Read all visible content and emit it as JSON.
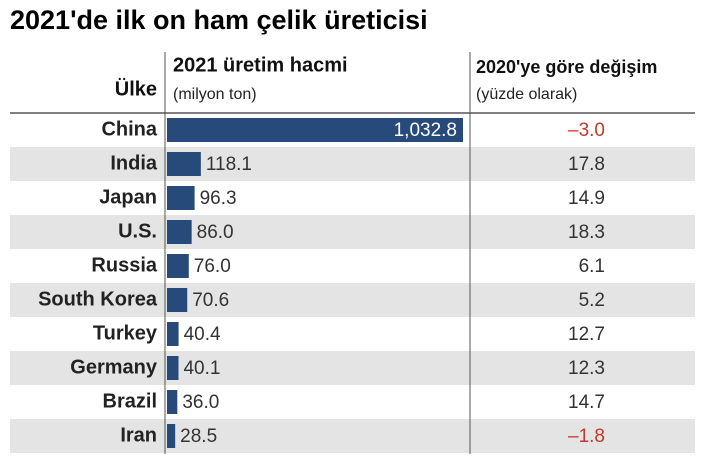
{
  "chart_data": {
    "type": "bar",
    "title": "2021'de ilk on ham çelik üreticisi",
    "category_header": "Ülke",
    "value_header": "2021 üretim hacmi",
    "value_subheader": "(milyon ton)",
    "change_header": "2020'ye göre değişim",
    "change_subheader": "(yüzde olarak)",
    "categories": [
      "China",
      "India",
      "Japan",
      "U.S.",
      "Russia",
      "South Korea",
      "Turkey",
      "Germany",
      "Brazil",
      "Iran"
    ],
    "values": [
      1032.8,
      118.1,
      96.3,
      86.0,
      76.0,
      70.6,
      40.4,
      40.1,
      36.0,
      28.5
    ],
    "value_labels": [
      "1,032.8",
      "118.1",
      "96.3",
      "86.0",
      "76.0",
      "70.6",
      "40.4",
      "40.1",
      "36.0",
      "28.5"
    ],
    "changes": [
      -3.0,
      17.8,
      14.9,
      18.3,
      6.1,
      5.2,
      12.7,
      12.3,
      14.7,
      -1.8
    ],
    "change_labels": [
      "–3.0",
      "17.8",
      "14.9",
      "18.3",
      "6.1",
      "5.2",
      "12.7",
      "12.3",
      "14.7",
      "–1.8"
    ],
    "color": "#264a7a",
    "negative_color": "#c0392b"
  }
}
